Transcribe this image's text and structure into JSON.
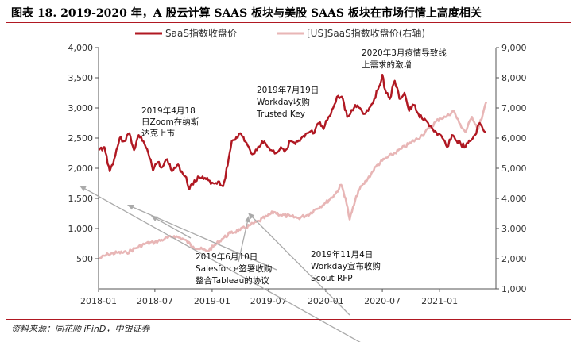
{
  "title": "图表 18. 2019-2020 年，A 股云计算 SAAS 板块与美股 SAAS 板块在市场行情上高度相关",
  "source": "资料来源：同花顺 iFinD，中银证券",
  "chart_data": {
    "type": "line",
    "x_ticks": [
      "2018-01",
      "2018-07",
      "2019-01",
      "2019-07",
      "2020-01",
      "2020-07",
      "2021-01"
    ],
    "y_left_ticks": [
      "500",
      "1,000",
      "1,500",
      "2,000",
      "2,500",
      "3,000",
      "3,500",
      "4,000"
    ],
    "y_right_ticks": [
      "1,000",
      "2,000",
      "3,000",
      "4,000",
      "5,000",
      "6,000",
      "7,000",
      "8,000",
      "9,000"
    ],
    "ylim_left": [
      0,
      4000
    ],
    "ylim_right": [
      1000,
      9000
    ],
    "legend_position": "top",
    "series": [
      {
        "name": "SaaS指数收盘价",
        "axis": "left",
        "color": "#b01822",
        "points": [
          [
            "2018-01-02",
            2300
          ],
          [
            "2018-01-20",
            2350
          ],
          [
            "2018-02-06",
            1950
          ],
          [
            "2018-02-20",
            2150
          ],
          [
            "2018-03-10",
            2500
          ],
          [
            "2018-03-25",
            2450
          ],
          [
            "2018-04-10",
            2580
          ],
          [
            "2018-04-25",
            2300
          ],
          [
            "2018-05-10",
            2550
          ],
          [
            "2018-05-25",
            2450
          ],
          [
            "2018-06-10",
            2250
          ],
          [
            "2018-06-25",
            1960
          ],
          [
            "2018-07-10",
            2100
          ],
          [
            "2018-07-25",
            2020
          ],
          [
            "2018-08-10",
            2150
          ],
          [
            "2018-08-25",
            1950
          ],
          [
            "2018-09-10",
            2050
          ],
          [
            "2018-09-25",
            1950
          ],
          [
            "2018-10-10",
            1850
          ],
          [
            "2018-10-20",
            1650
          ],
          [
            "2018-11-05",
            1800
          ],
          [
            "2018-11-20",
            1850
          ],
          [
            "2018-12-05",
            1820
          ],
          [
            "2018-12-20",
            1800
          ],
          [
            "2019-01-05",
            1750
          ],
          [
            "2019-01-20",
            1780
          ],
          [
            "2019-02-05",
            1700
          ],
          [
            "2019-02-20",
            2050
          ],
          [
            "2019-03-05",
            2450
          ],
          [
            "2019-03-20",
            2520
          ],
          [
            "2019-04-05",
            2560
          ],
          [
            "2019-04-18",
            2440
          ],
          [
            "2019-05-06",
            2250
          ],
          [
            "2019-05-25",
            2300
          ],
          [
            "2019-06-10",
            2450
          ],
          [
            "2019-06-25",
            2380
          ],
          [
            "2019-07-10",
            2300
          ],
          [
            "2019-07-25",
            2250
          ],
          [
            "2019-08-10",
            2350
          ],
          [
            "2019-08-25",
            2300
          ],
          [
            "2019-09-10",
            2450
          ],
          [
            "2019-09-25",
            2400
          ],
          [
            "2019-10-10",
            2450
          ],
          [
            "2019-10-25",
            2520
          ],
          [
            "2019-11-10",
            2600
          ],
          [
            "2019-11-25",
            2580
          ],
          [
            "2019-12-10",
            2750
          ],
          [
            "2019-12-25",
            2650
          ],
          [
            "2020-01-10",
            2850
          ],
          [
            "2020-01-25",
            3000
          ],
          [
            "2020-02-10",
            3200
          ],
          [
            "2020-02-25",
            3150
          ],
          [
            "2020-03-10",
            2850
          ],
          [
            "2020-03-20",
            2900
          ],
          [
            "2020-04-05",
            3050
          ],
          [
            "2020-04-20",
            3000
          ],
          [
            "2020-05-05",
            2900
          ],
          [
            "2020-05-20",
            3000
          ],
          [
            "2020-06-05",
            3150
          ],
          [
            "2020-06-20",
            3350
          ],
          [
            "2020-07-01",
            3550
          ],
          [
            "2020-07-10",
            3300
          ],
          [
            "2020-07-25",
            3150
          ],
          [
            "2020-08-10",
            3450
          ],
          [
            "2020-08-25",
            3150
          ],
          [
            "2020-09-10",
            3250
          ],
          [
            "2020-09-25",
            2950
          ],
          [
            "2020-10-10",
            3050
          ],
          [
            "2020-10-25",
            2900
          ],
          [
            "2020-11-10",
            2800
          ],
          [
            "2020-11-25",
            2750
          ],
          [
            "2020-12-10",
            2650
          ],
          [
            "2020-12-25",
            2550
          ],
          [
            "2021-01-10",
            2500
          ],
          [
            "2021-01-25",
            2350
          ],
          [
            "2021-02-10",
            2550
          ],
          [
            "2021-02-25",
            2450
          ],
          [
            "2021-03-10",
            2400
          ],
          [
            "2021-03-25",
            2350
          ],
          [
            "2021-04-10",
            2450
          ],
          [
            "2021-04-25",
            2550
          ],
          [
            "2021-05-10",
            2750
          ],
          [
            "2021-05-20",
            2650
          ],
          [
            "2021-05-31",
            2600
          ]
        ]
      },
      {
        "name": "[US]SaaS指数收盘价(右轴)",
        "axis": "right",
        "color": "#e8b6b6",
        "points": [
          [
            "2018-01-02",
            2000
          ],
          [
            "2018-02-01",
            2150
          ],
          [
            "2018-03-01",
            2200
          ],
          [
            "2018-04-01",
            2200
          ],
          [
            "2018-05-01",
            2350
          ],
          [
            "2018-06-01",
            2500
          ],
          [
            "2018-07-01",
            2550
          ],
          [
            "2018-08-01",
            2650
          ],
          [
            "2018-09-01",
            2750
          ],
          [
            "2018-10-01",
            2650
          ],
          [
            "2018-11-01",
            2400
          ],
          [
            "2018-12-15",
            2250
          ],
          [
            "2019-01-05",
            2400
          ],
          [
            "2019-02-01",
            2650
          ],
          [
            "2019-03-01",
            2850
          ],
          [
            "2019-04-01",
            2950
          ],
          [
            "2019-05-01",
            3100
          ],
          [
            "2019-06-01",
            3250
          ],
          [
            "2019-06-25",
            3400
          ],
          [
            "2019-07-19",
            3550
          ],
          [
            "2019-08-10",
            3450
          ],
          [
            "2019-09-10",
            3400
          ],
          [
            "2019-10-05",
            3350
          ],
          [
            "2019-11-04",
            3450
          ],
          [
            "2019-12-01",
            3650
          ],
          [
            "2020-01-01",
            3850
          ],
          [
            "2020-02-01",
            4150
          ],
          [
            "2020-02-20",
            4450
          ],
          [
            "2020-03-05",
            4000
          ],
          [
            "2020-03-18",
            3300
          ],
          [
            "2020-03-25",
            3550
          ],
          [
            "2020-04-15",
            4250
          ],
          [
            "2020-05-15",
            4650
          ],
          [
            "2020-06-10",
            5050
          ],
          [
            "2020-07-01",
            5250
          ],
          [
            "2020-08-01",
            5450
          ],
          [
            "2020-09-01",
            5650
          ],
          [
            "2020-10-01",
            5850
          ],
          [
            "2020-11-01",
            6050
          ],
          [
            "2020-12-01",
            6350
          ],
          [
            "2021-01-01",
            6650
          ],
          [
            "2021-01-20",
            6700
          ],
          [
            "2021-02-15",
            6900
          ],
          [
            "2021-03-05",
            6500
          ],
          [
            "2021-03-25",
            6200
          ],
          [
            "2021-04-15",
            6700
          ],
          [
            "2021-05-05",
            6300
          ],
          [
            "2021-05-20",
            6800
          ],
          [
            "2021-05-31",
            7200
          ]
        ]
      }
    ],
    "annotations": [
      {
        "lines": [
          "2019年4月18",
          "日Zoom在纳斯",
          "达克上市"
        ],
        "date": "2019-04-18"
      },
      {
        "lines": [
          "2019年7月19日",
          "Workday收购",
          "Trusted Key"
        ],
        "date": "2019-07-19"
      },
      {
        "lines": [
          "2020年3月疫情导致线",
          "上需求的激增"
        ],
        "date": "2020-03-18"
      },
      {
        "lines": [
          "2019年6月10日",
          "Salesforce签署收购",
          "整合Tableau的协议"
        ],
        "date": "2019-06-10"
      },
      {
        "lines": [
          "2019年11月4日",
          "Workday宣布收购",
          "Scout RFP"
        ],
        "date": "2019-11-04"
      }
    ]
  }
}
